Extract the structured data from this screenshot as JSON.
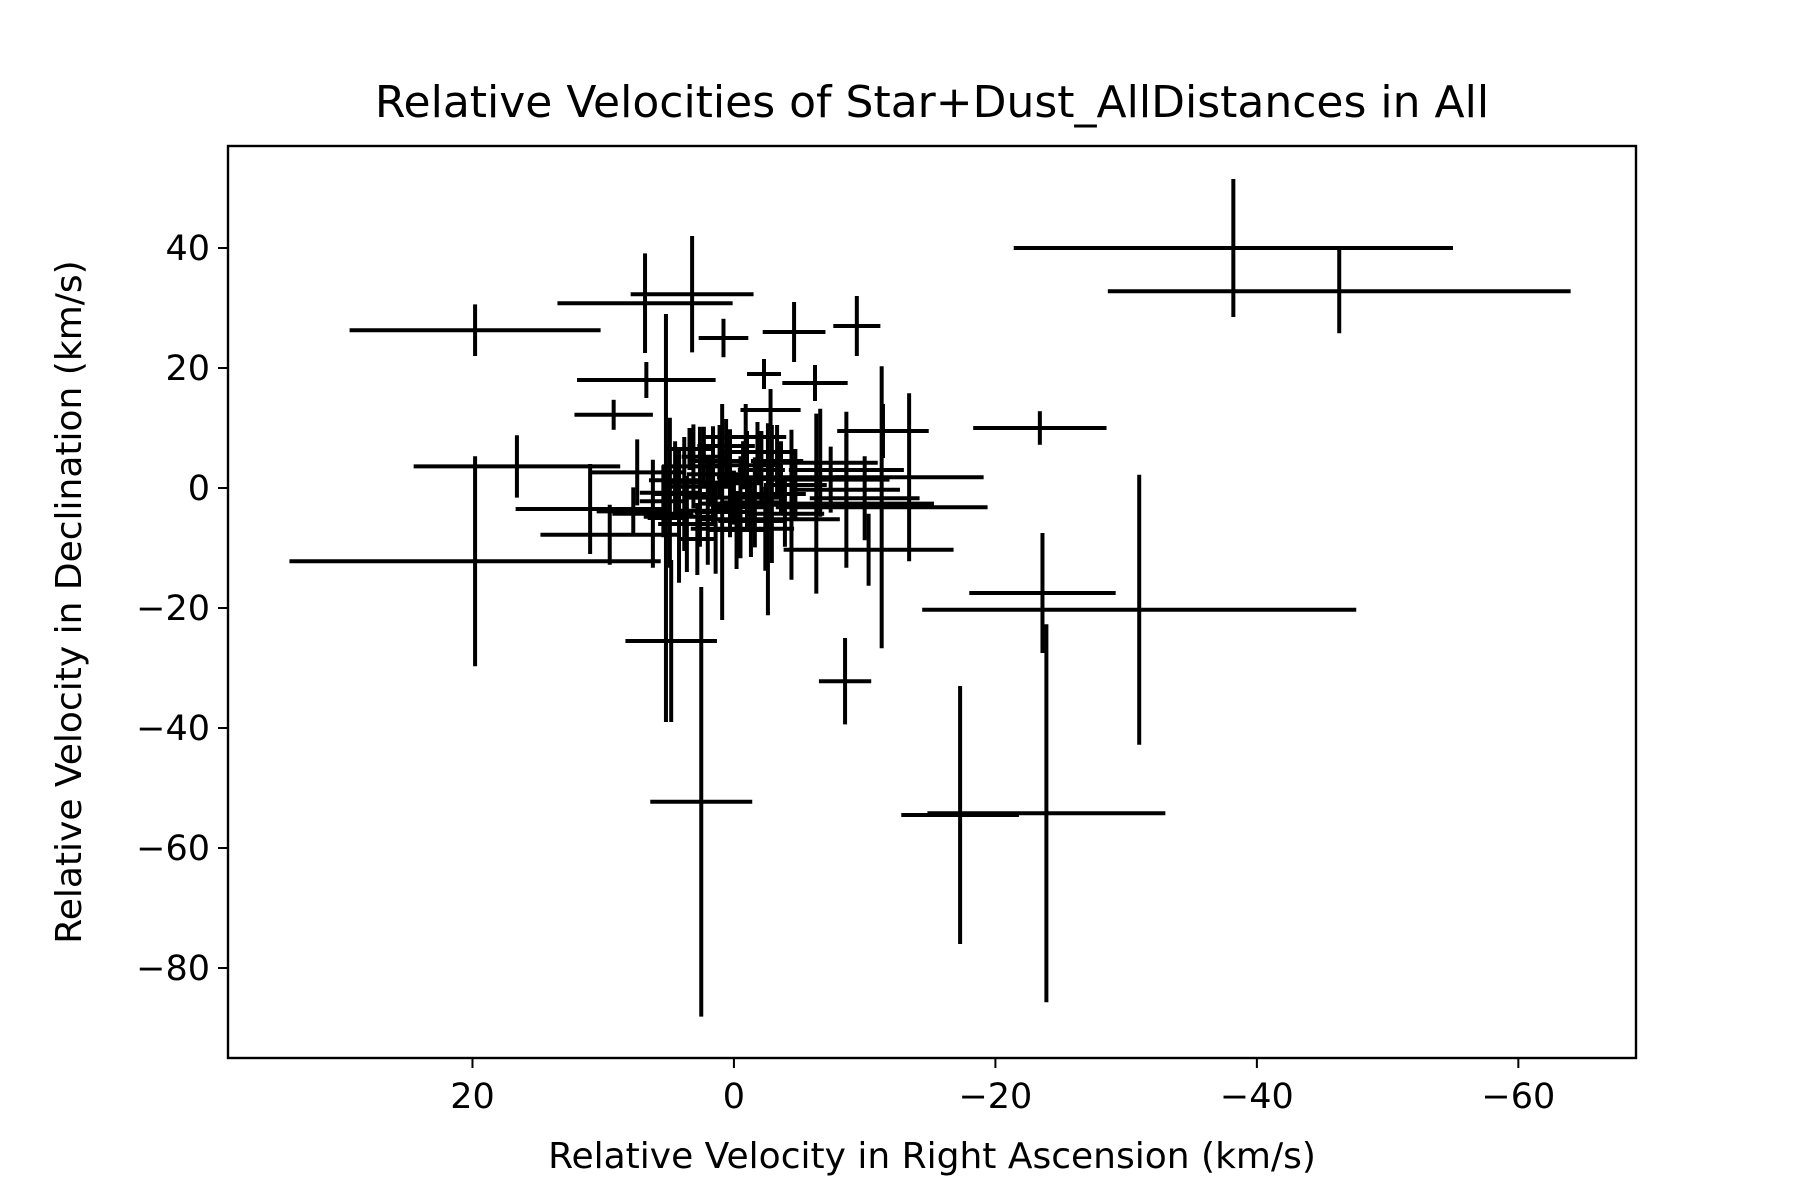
{
  "chart_data": {
    "type": "scatter",
    "title": "Relative Velocities of Star+Dust_AllDistances in All",
    "xlabel": "Relative Velocity in Right Ascension (km/s)",
    "ylabel": "Relative Velocity in Declination (km/s)",
    "xlim": [
      38.7,
      -69
    ],
    "ylim": [
      -95,
      57
    ],
    "x_inverted": true,
    "x_ticks": [
      20,
      0,
      -20,
      -40,
      -60
    ],
    "y_ticks": [
      40,
      20,
      0,
      -20,
      -40,
      -60,
      -80
    ],
    "x_tick_labels": [
      "20",
      "0",
      "−20",
      "−40",
      "−60"
    ],
    "y_tick_labels": [
      "40",
      "20",
      "0",
      "−20",
      "−40",
      "−60",
      "−80"
    ],
    "grid": false,
    "marker": "none",
    "error_bars": true,
    "series": [
      {
        "points": [
          {
            "x": -38.2,
            "y": 40.0,
            "xerr": 16.8,
            "yerr": 11.5
          },
          {
            "x": -46.3,
            "y": 32.8,
            "xerr": 17.7,
            "yerr": 7.0
          },
          {
            "x": 19.8,
            "y": 26.3,
            "xerr": 9.6,
            "yerr": 4.3
          },
          {
            "x": -9.4,
            "y": 27.0,
            "xerr": 1.8,
            "yerr": 5.0
          },
          {
            "x": -4.6,
            "y": 26.0,
            "xerr": 2.4,
            "yerr": 5.0
          },
          {
            "x": 3.2,
            "y": 32.3,
            "xerr": 4.7,
            "yerr": 9.7
          },
          {
            "x": 6.8,
            "y": 30.8,
            "xerr": 6.7,
            "yerr": 8.3
          },
          {
            "x": 0.8,
            "y": 25.0,
            "xerr": 1.9,
            "yerr": 3.2
          },
          {
            "x": 6.7,
            "y": 18.0,
            "xerr": 5.3,
            "yerr": 3.0
          },
          {
            "x": 9.2,
            "y": 12.2,
            "xerr": 3.0,
            "yerr": 2.5
          },
          {
            "x": -2.3,
            "y": 19.0,
            "xerr": 1.3,
            "yerr": 2.5
          },
          {
            "x": -6.2,
            "y": 17.5,
            "xerr": 2.5,
            "yerr": 3.0
          },
          {
            "x": -2.8,
            "y": 13.0,
            "xerr": 2.3,
            "yerr": 3.5
          },
          {
            "x": -23.4,
            "y": 10.0,
            "xerr": 5.1,
            "yerr": 2.8
          },
          {
            "x": 16.6,
            "y": 3.6,
            "xerr": 7.9,
            "yerr": 5.2
          },
          {
            "x": 19.8,
            "y": -12.2,
            "xerr": 14.2,
            "yerr": 17.5
          },
          {
            "x": 11.0,
            "y": -3.5,
            "xerr": 5.7,
            "yerr": 7.5
          },
          {
            "x": -23.6,
            "y": -17.5,
            "xerr": 5.6,
            "yerr": 10.0
          },
          {
            "x": -31.0,
            "y": -20.3,
            "xerr": 16.6,
            "yerr": 22.5
          },
          {
            "x": -8.5,
            "y": -32.2,
            "xerr": 2.0,
            "yerr": 7.2
          },
          {
            "x": 4.8,
            "y": -25.5,
            "xerr": 3.5,
            "yerr": 13.5
          },
          {
            "x": 2.5,
            "y": -52.3,
            "xerr": 3.9,
            "yerr": 35.8
          },
          {
            "x": -17.3,
            "y": -54.5,
            "xerr": 4.5,
            "yerr": 21.5
          },
          {
            "x": -23.9,
            "y": -54.2,
            "xerr": 9.1,
            "yerr": 31.5
          },
          {
            "x": -11.4,
            "y": 9.5,
            "xerr": 3.5,
            "yerr": 4.5
          },
          {
            "x": -8.6,
            "y": 3.0,
            "xerr": 4.4,
            "yerr": 6.0
          },
          {
            "x": -11.3,
            "y": -3.2,
            "xerr": 8.1,
            "yerr": 23.5
          },
          {
            "x": -13.4,
            "y": 1.8,
            "xerr": 5.7,
            "yerr": 14.0
          },
          {
            "x": -10.3,
            "y": -10.3,
            "xerr": 6.5,
            "yerr": 6.0
          },
          {
            "x": -6.3,
            "y": -2.6,
            "xerr": 9.0,
            "yerr": 15.0
          },
          {
            "x": -6.6,
            "y": 4.2,
            "xerr": 4.4,
            "yerr": 9.0
          },
          {
            "x": -7.4,
            "y": 1.4,
            "xerr": 4.5,
            "yerr": 5.5
          },
          {
            "x": -8.6,
            "y": -0.3,
            "xerr": 4.1,
            "yerr": 13.0
          },
          {
            "x": -4.4,
            "y": -2.8,
            "xerr": 2.9,
            "yerr": 12.5
          },
          {
            "x": -10.0,
            "y": -1.7,
            "xerr": 4.2,
            "yerr": 7.0
          },
          {
            "x": -2.6,
            "y": -5.2,
            "xerr": 5.5,
            "yerr": 16.0
          },
          {
            "x": -3.6,
            "y": 1.8,
            "xerr": 4.9,
            "yerr": 6.0
          },
          {
            "x": 5.2,
            "y": -5.0,
            "xerr": 1.4,
            "yerr": 34.0
          },
          {
            "x": 6.2,
            "y": -4.3,
            "xerr": 3.1,
            "yerr": 9.0
          },
          {
            "x": 7.7,
            "y": -3.9,
            "xerr": 2.8,
            "yerr": 4.0
          },
          {
            "x": 9.5,
            "y": -7.8,
            "xerr": 5.3,
            "yerr": 5.0
          },
          {
            "x": 7.4,
            "y": 2.6,
            "xerr": 3.7,
            "yerr": 5.5
          },
          {
            "x": 4.9,
            "y": -0.8,
            "xerr": 2.3,
            "yerr": 12.5
          },
          {
            "x": 4.2,
            "y": -4.8,
            "xerr": 2.7,
            "yerr": 11.0
          },
          {
            "x": 3.8,
            "y": -1.0,
            "xerr": 2.3,
            "yerr": 9.5
          },
          {
            "x": 2.6,
            "y": 0.2,
            "xerr": 2.6,
            "yerr": 10.0
          },
          {
            "x": 2.0,
            "y": -3.8,
            "xerr": 2.4,
            "yerr": 9.0
          },
          {
            "x": 1.6,
            "y": 2.3,
            "xerr": 2.0,
            "yerr": 8.0
          },
          {
            "x": 0.9,
            "y": -4.0,
            "xerr": 2.1,
            "yerr": 18.0
          },
          {
            "x": 0.3,
            "y": 0.8,
            "xerr": 2.3,
            "yerr": 9.0
          },
          {
            "x": -0.5,
            "y": -3.2,
            "xerr": 1.9,
            "yerr": 8.5
          },
          {
            "x": -1.0,
            "y": 1.5,
            "xerr": 2.2,
            "yerr": 8.0
          },
          {
            "x": -1.6,
            "y": -2.4,
            "xerr": 2.4,
            "yerr": 7.5
          },
          {
            "x": -2.1,
            "y": 3.0,
            "xerr": 1.8,
            "yerr": 6.5
          },
          {
            "x": -2.9,
            "y": -1.0,
            "xerr": 2.6,
            "yerr": 11.5
          },
          {
            "x": -3.3,
            "y": 4.5,
            "xerr": 2.0,
            "yerr": 6.0
          },
          {
            "x": -1.8,
            "y": 6.0,
            "xerr": 2.8,
            "yerr": 5.0
          },
          {
            "x": -0.9,
            "y": 8.5,
            "xerr": 3.1,
            "yerr": 5.5
          },
          {
            "x": 0.6,
            "y": 7.0,
            "xerr": 2.2,
            "yerr": 4.5
          },
          {
            "x": 1.1,
            "y": 4.5,
            "xerr": 2.0,
            "yerr": 6.0
          },
          {
            "x": 2.3,
            "y": 5.2,
            "xerr": 1.7,
            "yerr": 5.0
          },
          {
            "x": 3.1,
            "y": 3.6,
            "xerr": 2.4,
            "yerr": 7.0
          },
          {
            "x": 4.5,
            "y": 1.3,
            "xerr": 2.0,
            "yerr": 6.5
          },
          {
            "x": 5.4,
            "y": -2.2,
            "xerr": 1.8,
            "yerr": 6.0
          },
          {
            "x": 3.6,
            "y": -6.0,
            "xerr": 2.2,
            "yerr": 8.0
          },
          {
            "x": 2.8,
            "y": -8.5,
            "xerr": 1.5,
            "yerr": 6.0
          },
          {
            "x": 1.4,
            "y": -6.8,
            "xerr": 1.9,
            "yerr": 7.5
          },
          {
            "x": -0.2,
            "y": -7.0,
            "xerr": 2.1,
            "yerr": 6.5
          },
          {
            "x": -1.3,
            "y": -5.5,
            "xerr": 2.5,
            "yerr": 6.0
          },
          {
            "x": -2.4,
            "y": -6.8,
            "xerr": 2.2,
            "yerr": 7.0
          },
          {
            "x": -3.9,
            "y": -4.3,
            "xerr": 3.0,
            "yerr": 5.5
          },
          {
            "x": -4.7,
            "y": 0.5,
            "xerr": 2.4,
            "yerr": 6.0
          },
          {
            "x": 1.9,
            "y": 0.9,
            "xerr": 3.3,
            "yerr": 4.0
          },
          {
            "x": 0.0,
            "y": -1.6,
            "xerr": 3.6,
            "yerr": 4.5
          },
          {
            "x": -0.7,
            "y": 3.8,
            "xerr": 2.7,
            "yerr": 4.0
          },
          {
            "x": 3.4,
            "y": 6.5,
            "xerr": 1.8,
            "yerr": 3.5
          }
        ]
      }
    ]
  }
}
